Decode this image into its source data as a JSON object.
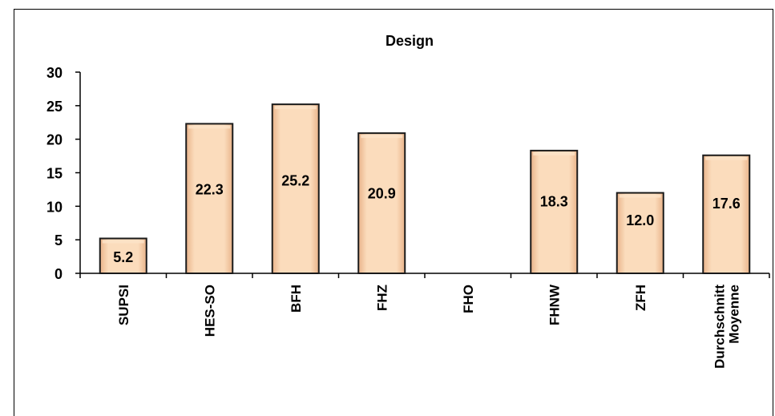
{
  "chart_data": {
    "type": "bar",
    "title": "Design",
    "categories": [
      [
        "SUPSI"
      ],
      [
        "HES-SO"
      ],
      [
        "BFH"
      ],
      [
        "FHZ"
      ],
      [
        "FHO"
      ],
      [
        "FHNW"
      ],
      [
        "ZFH"
      ],
      [
        "Durchschnitt",
        "Moyenne"
      ]
    ],
    "values": [
      5.2,
      22.3,
      25.2,
      20.9,
      null,
      18.3,
      12.0,
      17.6
    ],
    "value_labels": [
      "5.2",
      "22.3",
      "25.2",
      "20.9",
      "",
      "18.3",
      "12.0",
      "17.6"
    ],
    "yticks": [
      "0",
      "5",
      "10",
      "15",
      "20",
      "25",
      "30"
    ],
    "ylim": [
      0,
      30
    ],
    "grid": false,
    "bar_color": "#f8c8a0",
    "bar_highlight": "#fde3c8",
    "bar_border": "#1a1a1a"
  }
}
